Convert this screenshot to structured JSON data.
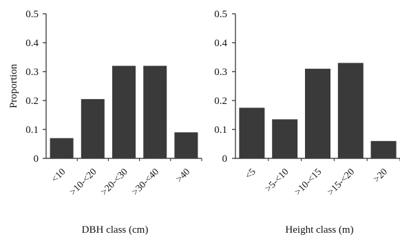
{
  "colors": {
    "bar": "#3a3a3a",
    "axis": "#222222"
  },
  "chart_data": [
    {
      "type": "bar",
      "title": "",
      "xlabel": "DBH class (cm)",
      "ylabel": "Proportion",
      "ylim": [
        0,
        0.5
      ],
      "yticks": [
        "0",
        "0.1",
        "0.2",
        "0.3",
        "0.4",
        "0.5"
      ],
      "ytick_values": [
        0,
        0.1,
        0.2,
        0.3,
        0.4,
        0.5
      ],
      "categories": [
        "<10",
        ">10-<20",
        ">20-<30",
        ">30-<40",
        ">40"
      ],
      "values": [
        0.07,
        0.205,
        0.32,
        0.32,
        0.09
      ],
      "grid": false,
      "legend": "none"
    },
    {
      "type": "bar",
      "title": "",
      "xlabel": "Height class (m)",
      "ylabel": "",
      "ylim": [
        0,
        0.5
      ],
      "yticks": [
        "0",
        "0.1",
        "0.2",
        "0.3",
        "0.4",
        "0.5"
      ],
      "ytick_values": [
        0,
        0.1,
        0.2,
        0.3,
        0.4,
        0.5
      ],
      "categories": [
        "<5",
        ">5-<10",
        ">10-<15",
        ">15-<20",
        ">20"
      ],
      "values": [
        0.175,
        0.135,
        0.31,
        0.33,
        0.06
      ],
      "grid": false,
      "legend": "none"
    }
  ]
}
